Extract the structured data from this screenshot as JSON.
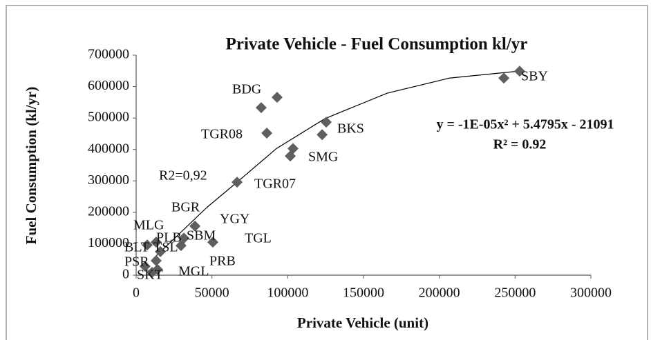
{
  "chart_data": {
    "type": "scatter",
    "title": "Private Vehicle - Fuel Consumption kl/yr",
    "x_label": "Private Vehicle (unit)",
    "y_label": "Fuel Consumption  (kl/yr)",
    "color": "#5f5f5f",
    "series": [
      {
        "name": "Private Vehicle",
        "color": "#5f5f5f",
        "x": [
          253000,
          242600,
          93000,
          82500,
          86200,
          125400,
          122700,
          103500,
          101700,
          66600,
          38800,
          50600,
          29600,
          31500,
          7300,
          13200,
          16000,
          13200,
          5900,
          14100,
          10500
        ],
        "values": [
          649000,
          627000,
          566000,
          533000,
          452000,
          487000,
          447000,
          403000,
          379000,
          296000,
          156000,
          105000,
          94000,
          118000,
          96000,
          105000,
          75000,
          46000,
          28000,
          18000,
          9000
        ]
      }
    ],
    "trendline": {
      "color": "#000000",
      "x": [
        11400,
        47000,
        66600,
        92600,
        124500,
        165500,
        206600,
        252000
      ],
      "values": [
        53000,
        217000,
        296000,
        403000,
        498000,
        579000,
        627000,
        649000
      ]
    },
    "equation": "y = -1E-05x² + 5.4795x - 21091",
    "r_squared": "R² = 0.92",
    "annotations": [
      "SBY",
      "BDG",
      "TGR08",
      "BKS",
      "SMG",
      "TGR07",
      "R2=0,92",
      "BGR",
      "YGY",
      "MLG",
      "TGL",
      "SBM",
      "PLB",
      "BLT",
      "TSL",
      "PSR",
      "PRB",
      "MGL",
      "SKT"
    ],
    "xlim": [
      0,
      300000
    ],
    "xticks": [
      0,
      50000,
      100000,
      150000,
      200000,
      250000,
      300000
    ],
    "ylim": [
      0,
      700000
    ],
    "yticks": [
      0,
      100000,
      200000,
      300000,
      400000,
      500000,
      600000,
      700000
    ]
  }
}
